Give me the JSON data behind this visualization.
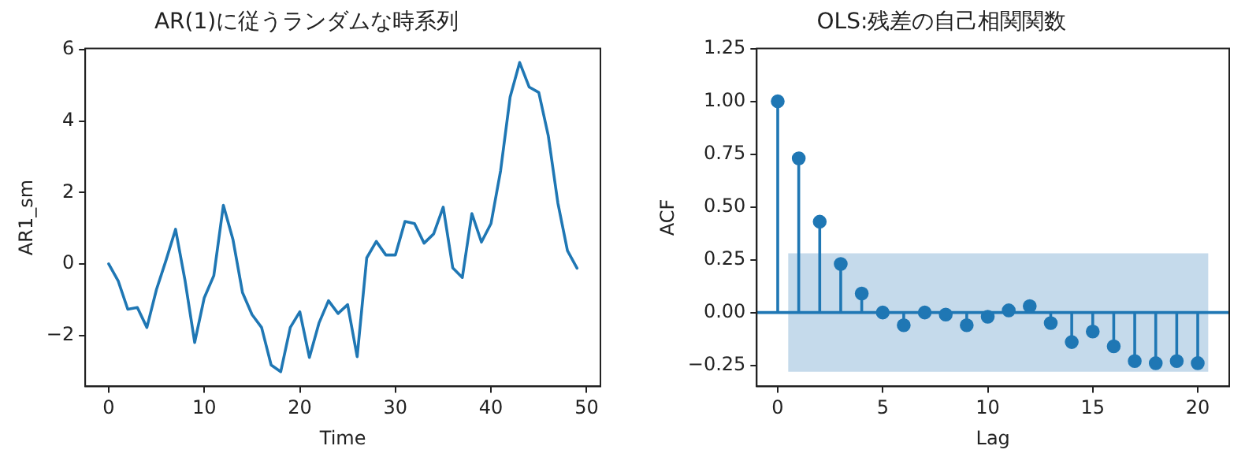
{
  "chart_data": [
    {
      "type": "line",
      "title": "AR(1)に従うランダムな時系列",
      "xlabel": "Time",
      "ylabel": "AR1_sm",
      "x": [
        0,
        1,
        2,
        3,
        4,
        5,
        6,
        7,
        8,
        9,
        10,
        11,
        12,
        13,
        14,
        15,
        16,
        17,
        18,
        19,
        20,
        21,
        22,
        23,
        24,
        25,
        26,
        27,
        28,
        29,
        30,
        31,
        32,
        33,
        34,
        35,
        36,
        37,
        38,
        39,
        40,
        41,
        42,
        43,
        44,
        45,
        46,
        47,
        48,
        49
      ],
      "series": [
        {
          "color": "#1f77b4",
          "values": [
            0,
            -0.48,
            -1.27,
            -1.22,
            -1.78,
            -0.72,
            0.1,
            0.97,
            -0.48,
            -2.2,
            -0.95,
            -0.33,
            1.64,
            0.69,
            -0.8,
            -1.42,
            -1.78,
            -2.83,
            -3.02,
            -1.78,
            -1.34,
            -2.62,
            -1.66,
            -1.03,
            -1.39,
            -1.14,
            -2.6,
            0.17,
            0.63,
            0.25,
            0.25,
            1.19,
            1.13,
            0.58,
            0.84,
            1.59,
            -0.11,
            -0.38,
            1.41,
            0.61,
            1.13,
            2.6,
            4.67,
            5.64,
            4.95,
            4.8,
            3.58,
            1.7,
            0.37,
            -0.12
          ]
        }
      ],
      "xlim": [
        -2.45,
        51.45
      ],
      "ylim": [
        -3.43,
        6.03
      ],
      "xticks": [
        0,
        10,
        20,
        30,
        40,
        50
      ],
      "yticks": [
        {
          "value": -2,
          "label": "−2"
        },
        0,
        2,
        4,
        6
      ],
      "grid": false,
      "legend": false,
      "marker": "none",
      "line_style": "solid"
    },
    {
      "type": "lollipop",
      "title": "OLS:残差の自己相関関数",
      "xlabel": "Lag",
      "ylabel": "ACF",
      "x": [
        0,
        1,
        2,
        3,
        4,
        5,
        6,
        7,
        8,
        9,
        10,
        11,
        12,
        13,
        14,
        15,
        16,
        17,
        18,
        19,
        20
      ],
      "series": [
        {
          "color": "#1f77b4",
          "values": [
            1.0,
            0.73,
            0.43,
            0.23,
            0.09,
            0.0,
            -0.06,
            0.0,
            -0.01,
            -0.06,
            -0.02,
            0.01,
            0.03,
            -0.05,
            -0.14,
            -0.09,
            -0.16,
            -0.23,
            -0.24,
            -0.23,
            -0.24
          ]
        }
      ],
      "xlim": [
        -1,
        21.5
      ],
      "ylim": [
        -0.35,
        1.25
      ],
      "xticks": [
        0,
        5,
        10,
        15,
        20
      ],
      "yticks": [
        {
          "value": -0.25,
          "label": "−0.25"
        },
        {
          "value": 0,
          "label": "0.00"
        },
        {
          "value": 0.25,
          "label": "0.25"
        },
        {
          "value": 0.5,
          "label": "0.50"
        },
        {
          "value": 0.75,
          "label": "0.75"
        },
        {
          "value": 1,
          "label": "1.00"
        },
        {
          "value": 1.25,
          "label": "1.25"
        }
      ],
      "ref_lines": [
        {
          "axis": "y",
          "value": 0,
          "color": "#1f77b4"
        }
      ],
      "bands": [
        {
          "axis": "y",
          "from": -0.28,
          "to": 0.28,
          "color": "#c5daeb"
        }
      ],
      "grid": false,
      "legend": false,
      "marker": "circle"
    }
  ]
}
